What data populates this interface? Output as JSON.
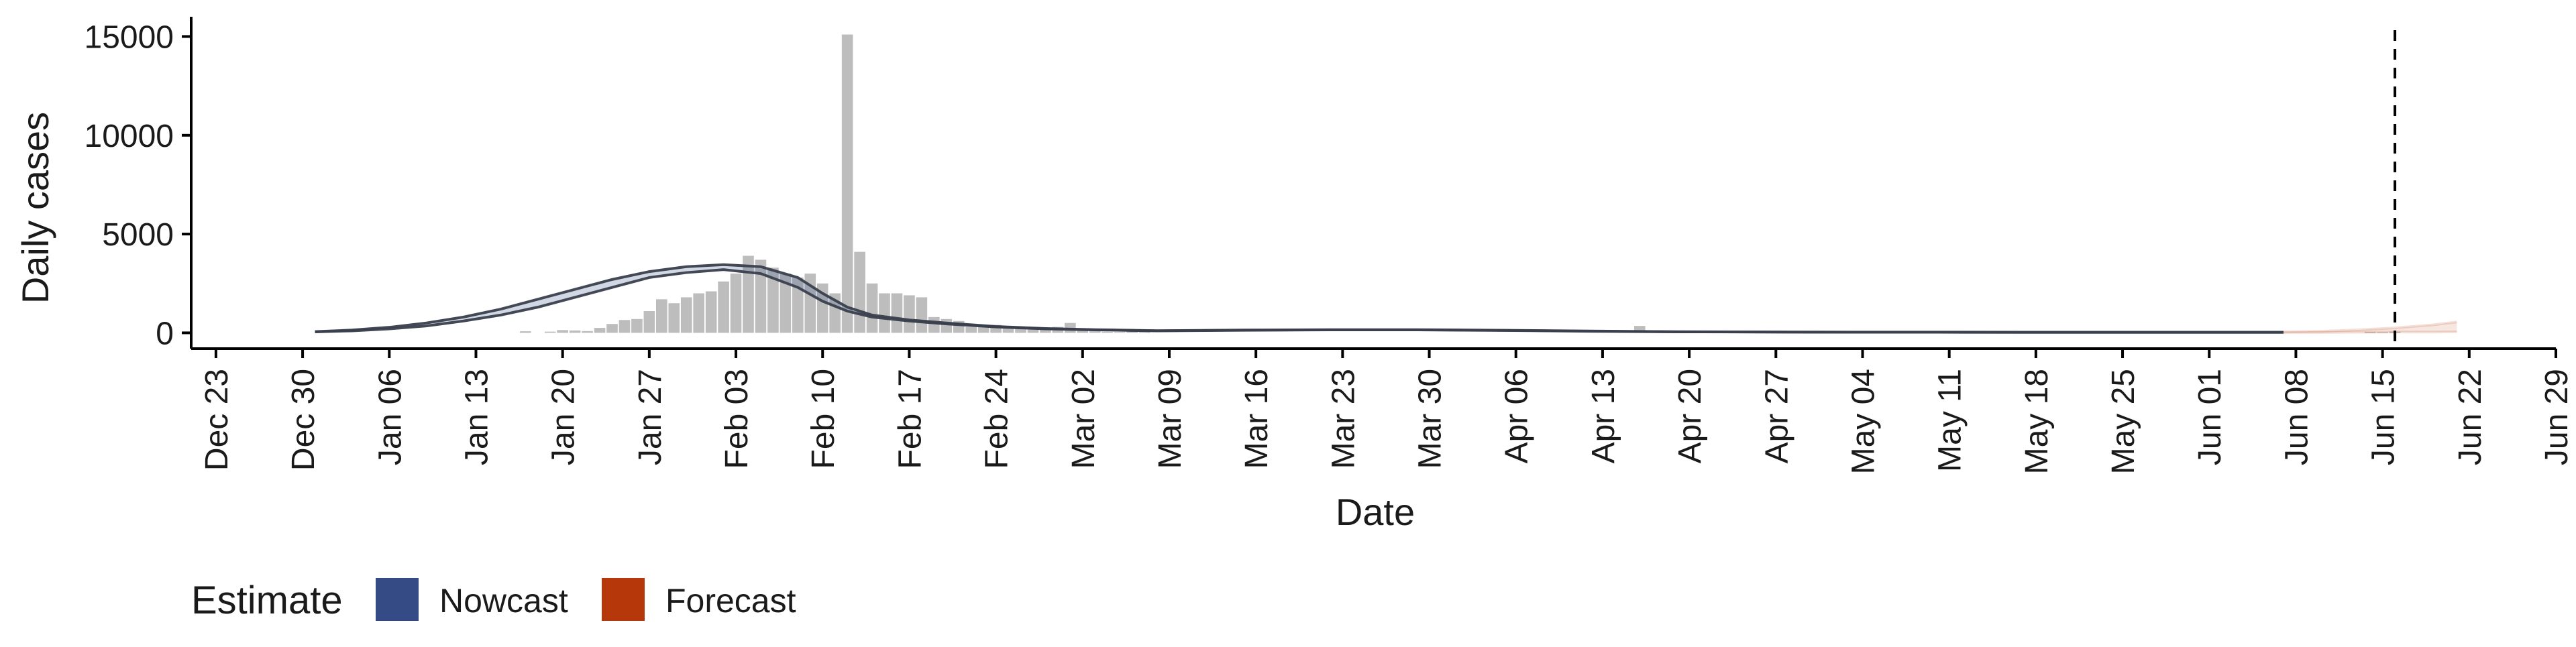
{
  "chart_data": {
    "type": "bar",
    "xlabel": "Date",
    "ylabel": "Daily cases",
    "x_domain": [
      "2019-12-21",
      "2020-06-29"
    ],
    "ylim": [
      -800,
      16000
    ],
    "y_ticks": [
      0,
      5000,
      10000,
      15000
    ],
    "y_tick_labels": [
      "0",
      "5000",
      "10000",
      "15000"
    ],
    "x_ticks": [
      "2019-12-23",
      "2019-12-30",
      "2020-01-06",
      "2020-01-13",
      "2020-01-20",
      "2020-01-27",
      "2020-02-03",
      "2020-02-10",
      "2020-02-17",
      "2020-02-24",
      "2020-03-02",
      "2020-03-09",
      "2020-03-16",
      "2020-03-23",
      "2020-03-30",
      "2020-04-06",
      "2020-04-13",
      "2020-04-20",
      "2020-04-27",
      "2020-05-04",
      "2020-05-11",
      "2020-05-18",
      "2020-05-25",
      "2020-06-01",
      "2020-06-08",
      "2020-06-15",
      "2020-06-22",
      "2020-06-29"
    ],
    "x_tick_labels": [
      "Dec 23",
      "Dec 30",
      "Jan 06",
      "Jan 13",
      "Jan 20",
      "Jan 27",
      "Feb 03",
      "Feb 10",
      "Feb 17",
      "Feb 24",
      "Mar 02",
      "Mar 09",
      "Mar 16",
      "Mar 23",
      "Mar 30",
      "Apr 06",
      "Apr 13",
      "Apr 20",
      "Apr 27",
      "May 04",
      "May 11",
      "May 18",
      "May 25",
      "Jun 01",
      "Jun 08",
      "Jun 15",
      "Jun 22",
      "Jun 29"
    ],
    "reference_line_date": "2020-06-16",
    "grid": false,
    "legend": {
      "title": "Estimate",
      "placement": "bottom-left",
      "items": [
        {
          "label": "Nowcast",
          "color": "#344b86"
        },
        {
          "label": "Forecast",
          "color": "#b6380a"
        }
      ]
    },
    "bars": {
      "color": "#bdbdbd",
      "dates": [
        "2020-01-17",
        "2020-01-19",
        "2020-01-20",
        "2020-01-21",
        "2020-01-22",
        "2020-01-23",
        "2020-01-24",
        "2020-01-25",
        "2020-01-26",
        "2020-01-27",
        "2020-01-28",
        "2020-01-29",
        "2020-01-30",
        "2020-01-31",
        "2020-02-01",
        "2020-02-02",
        "2020-02-03",
        "2020-02-04",
        "2020-02-05",
        "2020-02-06",
        "2020-02-07",
        "2020-02-08",
        "2020-02-09",
        "2020-02-10",
        "2020-02-11",
        "2020-02-12",
        "2020-02-13",
        "2020-02-14",
        "2020-02-15",
        "2020-02-16",
        "2020-02-17",
        "2020-02-18",
        "2020-02-19",
        "2020-02-20",
        "2020-02-21",
        "2020-02-22",
        "2020-02-23",
        "2020-02-24",
        "2020-02-25",
        "2020-02-26",
        "2020-02-27",
        "2020-02-28",
        "2020-02-29",
        "2020-03-01",
        "2020-03-02",
        "2020-03-03",
        "2020-03-04",
        "2020-03-05",
        "2020-03-06",
        "2020-03-07",
        "2020-04-16",
        "2020-06-14",
        "2020-06-15",
        "2020-06-16"
      ],
      "values": [
        80,
        60,
        140,
        120,
        90,
        250,
        450,
        650,
        700,
        1100,
        1700,
        1500,
        1800,
        2000,
        2100,
        2600,
        3000,
        3900,
        3700,
        3300,
        3000,
        2800,
        3000,
        2500,
        2000,
        15100,
        4100,
        2500,
        2000,
        2000,
        1900,
        1800,
        800,
        700,
        600,
        300,
        400,
        400,
        350,
        300,
        300,
        200,
        300,
        500,
        150,
        80,
        50,
        40,
        80,
        40,
        350,
        50,
        40,
        60
      ]
    },
    "series": [
      {
        "name": "Nowcast",
        "color": "#344b86",
        "dates": [
          "2019-12-31",
          "2020-01-03",
          "2020-01-06",
          "2020-01-09",
          "2020-01-12",
          "2020-01-15",
          "2020-01-18",
          "2020-01-21",
          "2020-01-24",
          "2020-01-27",
          "2020-01-30",
          "2020-02-02",
          "2020-02-05",
          "2020-02-08",
          "2020-02-10",
          "2020-02-12",
          "2020-02-14",
          "2020-02-17",
          "2020-02-20",
          "2020-02-24",
          "2020-02-28",
          "2020-03-03",
          "2020-03-08",
          "2020-03-15",
          "2020-03-22",
          "2020-03-29",
          "2020-04-05",
          "2020-04-12",
          "2020-04-19",
          "2020-04-26",
          "2020-05-03",
          "2020-05-10",
          "2020-05-17",
          "2020-05-24",
          "2020-05-31",
          "2020-06-07"
        ],
        "lower": [
          50,
          100,
          200,
          350,
          600,
          900,
          1300,
          1800,
          2300,
          2800,
          3050,
          3200,
          3000,
          2300,
          1600,
          1100,
          800,
          600,
          450,
          300,
          200,
          150,
          100,
          130,
          150,
          150,
          120,
          80,
          50,
          40,
          30,
          30,
          25,
          25,
          25,
          25
        ],
        "upper": [
          60,
          140,
          280,
          500,
          800,
          1200,
          1700,
          2200,
          2700,
          3100,
          3350,
          3450,
          3350,
          2800,
          2000,
          1300,
          900,
          650,
          500,
          320,
          220,
          160,
          110,
          140,
          160,
          160,
          130,
          90,
          55,
          45,
          35,
          35,
          30,
          30,
          30,
          30
        ]
      },
      {
        "name": "Forecast",
        "color": "#b6380a",
        "dates": [
          "2020-06-07",
          "2020-06-10",
          "2020-06-13",
          "2020-06-16",
          "2020-06-19",
          "2020-06-21"
        ],
        "lower": [
          20,
          20,
          30,
          40,
          40,
          50
        ],
        "upper": [
          40,
          80,
          150,
          250,
          400,
          550
        ]
      }
    ]
  }
}
